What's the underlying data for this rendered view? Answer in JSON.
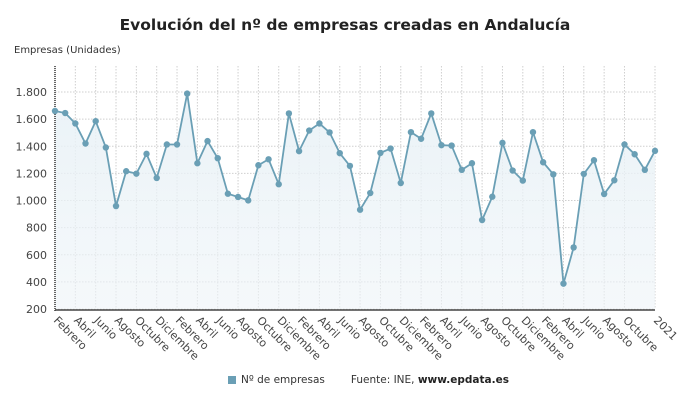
{
  "chart_data": {
    "type": "line",
    "title": "Evolución del nº de empresas creadas en Andalucía",
    "ylabel": "Empresas (Unidades)",
    "xlabel": "",
    "ylim": [
      200,
      1800
    ],
    "yticks": [
      "200",
      "400",
      "600",
      "800",
      "1.000",
      "1.200",
      "1.400",
      "1.600",
      "1.800"
    ],
    "ytick_values": [
      200,
      400,
      600,
      800,
      1000,
      1200,
      1400,
      1600,
      1800
    ],
    "tick_labels": [
      "Febrero",
      "Abril",
      "Junio",
      "Agosto",
      "Octubre",
      "Diciembre",
      "Febrero",
      "Abril",
      "Junio",
      "Agosto",
      "Octubre",
      "Diciembre",
      "Febrero",
      "Abril",
      "Junio",
      "Agosto",
      "Octubre",
      "Diciembre",
      "Febrero",
      "Abril",
      "Junio",
      "Agosto",
      "Octubre",
      "Diciembre",
      "Febrero",
      "Abril",
      "Junio",
      "Agosto",
      "Octubre",
      "2021"
    ],
    "grid": true,
    "legend_position": "bottom",
    "series": [
      {
        "name": "Nº de empresas",
        "color": "#6a9fb5",
        "values": [
          1660,
          1645,
          1568,
          1420,
          1585,
          1391,
          959,
          1216,
          1198,
          1344,
          1166,
          1413,
          1413,
          1788,
          1275,
          1438,
          1312,
          1050,
          1026,
          1001,
          1260,
          1304,
          1120,
          1642,
          1364,
          1516,
          1568,
          1502,
          1349,
          1255,
          932,
          1055,
          1351,
          1383,
          1129,
          1504,
          1455,
          1642,
          1408,
          1405,
          1226,
          1275,
          856,
          1028,
          1425,
          1221,
          1147,
          1504,
          1282,
          1193,
          387,
          654,
          1196,
          1297,
          1048,
          1149,
          1413,
          1341,
          1226,
          1366
        ]
      }
    ]
  },
  "legend": {
    "series_label": "Nº de empresas",
    "source_prefix": "Fuente: INE, ",
    "source_site": "www.epdata.es"
  }
}
